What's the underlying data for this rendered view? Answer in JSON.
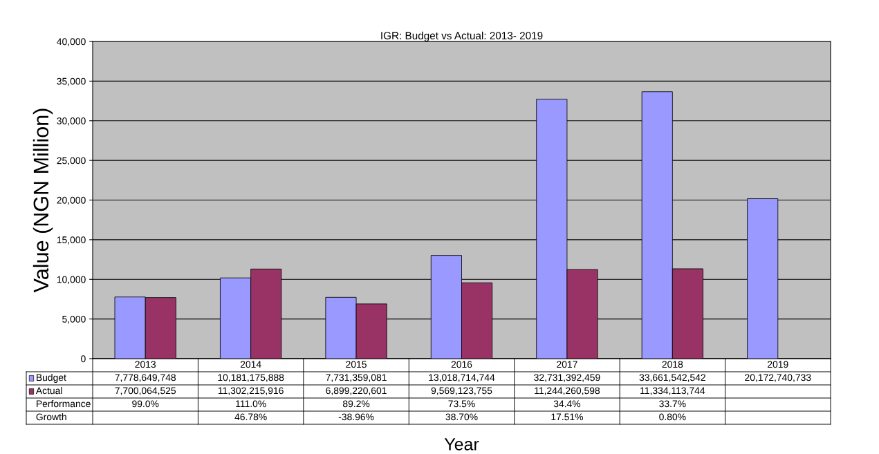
{
  "chart_data": {
    "type": "bar",
    "title": "IGR: Budget vs Actual: 2013- 2019",
    "xlabel": "Year",
    "ylabel": "Value (NGN Million)",
    "categories": [
      "2013",
      "2014",
      "2015",
      "2016",
      "2017",
      "2018",
      "2019"
    ],
    "series": [
      {
        "name": "Budget",
        "color": "#9999ff",
        "values": [
          7778.65,
          10181.18,
          7731.36,
          13018.71,
          32731.39,
          33661.54,
          20172.74
        ]
      },
      {
        "name": "Actual",
        "color": "#993366",
        "values": [
          7700.06,
          11302.22,
          6899.22,
          9569.12,
          11244.26,
          11334.11,
          null
        ]
      }
    ],
    "ylim": [
      0,
      40000
    ],
    "yticks": [
      0,
      {
        "value": 5000,
        "label": "5,000"
      },
      {
        "value": 10000,
        "label": "10,000"
      },
      {
        "value": 15000,
        "label": "15,000"
      },
      {
        "value": 20000,
        "label": "20,000"
      },
      {
        "value": 25000,
        "label": "25,000"
      },
      {
        "value": 30000,
        "label": "30,000"
      },
      {
        "value": 35000,
        "label": "35,000"
      },
      {
        "value": 40000,
        "label": "40,000"
      }
    ],
    "grid": "y",
    "legend": "bottom",
    "annotations": [
      "7,778,649,748",
      "10,181,175,888",
      "7,731,359,081",
      "13,018,714,744",
      "32,731,392,459",
      "33,661,542,542",
      "20,172,740,733",
      "7,700,064,525",
      "11,302,215,916",
      "6,899,220,601",
      "9,569,123,755",
      "11,244,260,598",
      "11,334,113,744",
      "Performance",
      "99.0%",
      "111.0%",
      "89.2%",
      "73.5%",
      "34.4%",
      "33.7%",
      "Growth",
      "46.78%",
      "-38.96%",
      "38.70%",
      "17.51%",
      "0.80%"
    ]
  }
}
